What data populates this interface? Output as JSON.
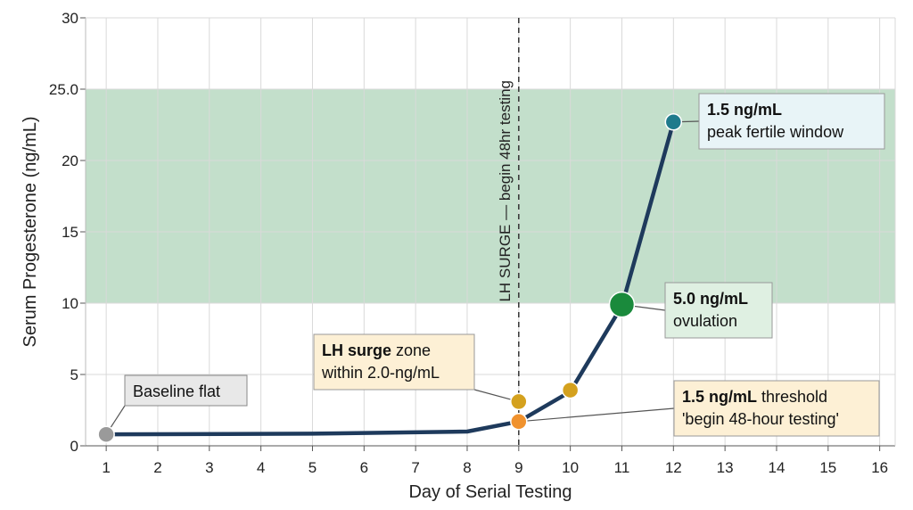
{
  "chart_data": {
    "type": "line",
    "title": "",
    "xlabel": "Day of Serial Testing",
    "ylabel": "Serum Progesterone (ng/mL)",
    "xlim": [
      0.6,
      16.3
    ],
    "ylim": [
      0,
      30
    ],
    "x_ticks": [
      "1",
      "2",
      "3",
      "4",
      "5",
      "6",
      "7",
      "8",
      "9",
      "10",
      "11",
      "12",
      "13",
      "14",
      "15",
      "16"
    ],
    "y_ticks": [
      {
        "value": 0,
        "label": "0"
      },
      {
        "value": 5,
        "label": "5"
      },
      {
        "value": 10,
        "label": "10"
      },
      {
        "value": 15,
        "label": "15"
      },
      {
        "value": 20,
        "label": "20"
      },
      {
        "value": 25,
        "label": "25.0"
      },
      {
        "value": 30,
        "label": "30"
      }
    ],
    "grid": true,
    "line_color": "#1e3a5c",
    "band": {
      "y_from": 10,
      "y_to": 25,
      "color": "#c3dfcb"
    },
    "series": [
      {
        "x": [
          1,
          5,
          8,
          9,
          10,
          11,
          12
        ],
        "y": [
          0.8,
          0.85,
          1.0,
          1.7,
          3.8,
          9.8,
          22.7
        ]
      }
    ],
    "points": [
      {
        "x": 1,
        "y": 0.8,
        "color": "#9a9a9a",
        "r": 9
      },
      {
        "x": 9,
        "y": 1.7,
        "color": "#f0922e",
        "r": 9
      },
      {
        "x": 9,
        "y": 3.1,
        "color": "#d4a11e",
        "r": 9
      },
      {
        "x": 10,
        "y": 3.9,
        "color": "#d4a11e",
        "r": 9
      },
      {
        "x": 11,
        "y": 9.9,
        "color": "#1a8a3c",
        "r": 14
      },
      {
        "x": 12,
        "y": 22.7,
        "color": "#1f7a8c",
        "r": 9
      }
    ],
    "vline": {
      "x": 9,
      "label": "LH SURGE — begin 48hr testing"
    },
    "annotations": [
      {
        "lines": [
          [
            {
              "text": "Baseline flat",
              "bold": false
            }
          ]
        ],
        "target": {
          "x": 1,
          "y": 0.8
        },
        "fill": "#e8e8e8",
        "stroke": "#888888"
      },
      {
        "lines": [
          [
            {
              "text": "LH surge",
              "bold": true
            },
            {
              "text": " zone",
              "bold": false
            }
          ],
          [
            {
              "text": "within 2.0-ng/mL",
              "bold": false
            }
          ]
        ],
        "target": {
          "x": 9,
          "y": 3.1
        },
        "fill": "#fdf0d5",
        "stroke": "#999999"
      },
      {
        "lines": [
          [
            {
              "text": "1.5 ng/mL",
              "bold": true
            },
            {
              "text": " threshold",
              "bold": false
            }
          ],
          [
            {
              "text": "'begin 48-hour testing'",
              "bold": false
            }
          ]
        ],
        "target": {
          "x": 9,
          "y": 1.7
        },
        "fill": "#fdf0d5",
        "stroke": "#999999"
      },
      {
        "lines": [
          [
            {
              "text": "5.0 ng/mL",
              "bold": true
            }
          ],
          [
            {
              "text": "ovulation",
              "bold": false
            }
          ]
        ],
        "target": {
          "x": 11,
          "y": 9.9
        },
        "fill": "#dff0e2",
        "stroke": "#999999"
      },
      {
        "lines": [
          [
            {
              "text": "1.5 ng/mL",
              "bold": true
            }
          ],
          [
            {
              "text": "peak fertile window",
              "bold": false
            }
          ]
        ],
        "target": {
          "x": 12,
          "y": 22.7
        },
        "fill": "#e8f4f7",
        "stroke": "#999999"
      }
    ]
  }
}
